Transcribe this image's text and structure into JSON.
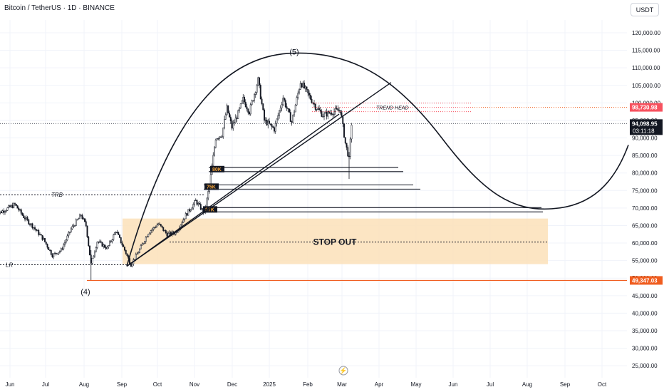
{
  "header": {
    "symbol": "Bitcoin / TetherUS · 1D · BINANCE",
    "currency": "USDT"
  },
  "chart_data": {
    "type": "line",
    "y_ticks": [
      25000,
      30000,
      35000,
      40000,
      45000,
      50000,
      55000,
      60000,
      65000,
      70000,
      75000,
      80000,
      85000,
      90000,
      95000,
      100000,
      105000,
      110000,
      115000,
      120000
    ],
    "y_tick_labels": [
      "25,000.00",
      "30,000.00",
      "35,000.00",
      "40,000.00",
      "45,000.00",
      "50,000.00",
      "55,000.00",
      "60,000.00",
      "65,000.00",
      "70,000.00",
      "75,000.00",
      "80,000.00",
      "85,000.00",
      "90,000.00",
      "95,000.00",
      "100,000.00",
      "105,000.00",
      "110,000.00",
      "115,000.00",
      "120,000.00"
    ],
    "x_labels": [
      "Jun",
      "Jul",
      "Aug",
      "Sep",
      "Oct",
      "Nov",
      "Dec",
      "2025",
      "Feb",
      "Mar",
      "Apr",
      "May",
      "Jun",
      "Jul",
      "Aug",
      "Sep",
      "Oct"
    ],
    "price_series": [
      [
        "2024-05-20",
        68000
      ],
      [
        "2024-05-28",
        69500
      ],
      [
        "2024-06-05",
        71000
      ],
      [
        "2024-06-12",
        67500
      ],
      [
        "2024-06-20",
        64500
      ],
      [
        "2024-06-28",
        61000
      ],
      [
        "2024-07-05",
        56500
      ],
      [
        "2024-07-12",
        58000
      ],
      [
        "2024-07-20",
        64000
      ],
      [
        "2024-07-28",
        68000
      ],
      [
        "2024-08-01",
        65000
      ],
      [
        "2024-08-05",
        54000
      ],
      [
        "2024-08-10",
        60500
      ],
      [
        "2024-08-18",
        58500
      ],
      [
        "2024-08-25",
        63500
      ],
      [
        "2024-09-01",
        58000
      ],
      [
        "2024-09-06",
        53800
      ],
      [
        "2024-09-12",
        57500
      ],
      [
        "2024-09-20",
        63000
      ],
      [
        "2024-09-28",
        65500
      ],
      [
        "2024-10-05",
        62500
      ],
      [
        "2024-10-12",
        63000
      ],
      [
        "2024-10-20",
        68000
      ],
      [
        "2024-10-28",
        72000
      ],
      [
        "2024-11-04",
        68500
      ],
      [
        "2024-11-08",
        76500
      ],
      [
        "2024-11-13",
        90000
      ],
      [
        "2024-11-18",
        91000
      ],
      [
        "2024-11-22",
        98500
      ],
      [
        "2024-11-26",
        93000
      ],
      [
        "2024-12-01",
        97000
      ],
      [
        "2024-12-05",
        101000
      ],
      [
        "2024-12-10",
        97500
      ],
      [
        "2024-12-17",
        106500
      ],
      [
        "2024-12-22",
        95000
      ],
      [
        "2024-12-30",
        92500
      ],
      [
        "2025-01-06",
        101500
      ],
      [
        "2025-01-13",
        94500
      ],
      [
        "2025-01-20",
        106000
      ],
      [
        "2025-01-26",
        102500
      ],
      [
        "2025-02-01",
        99000
      ],
      [
        "2025-02-07",
        96500
      ],
      [
        "2025-02-15",
        97500
      ],
      [
        "2025-02-21",
        98000
      ],
      [
        "2025-02-25",
        88500
      ],
      [
        "2025-02-28",
        84000
      ],
      [
        "2025-03-02",
        94098.95
      ]
    ],
    "horizontal_levels": [
      {
        "label": "TRB",
        "value": 73800
      },
      {
        "label": "LR",
        "value": 53800
      },
      {
        "label": "80K",
        "value": 81000
      },
      {
        "label": "75K",
        "value": 76000
      },
      {
        "label": "67K",
        "value": 69500
      },
      {
        "label": "TREND HEAD",
        "value": 98730.98
      },
      {
        "label": "",
        "value": 49347.03
      }
    ],
    "zones": [
      {
        "label": "STOP OUT",
        "from": 54000,
        "to": 67000
      }
    ],
    "wave_labels": [
      "(5)",
      "(4)"
    ],
    "price_tags": [
      {
        "text": "98,730.98",
        "color": "#f7525f"
      },
      {
        "text": "94,098.95",
        "sub": "03:11:18",
        "color": "#131722"
      },
      {
        "text": "49,347.03",
        "color": "#f05d1f"
      }
    ]
  }
}
